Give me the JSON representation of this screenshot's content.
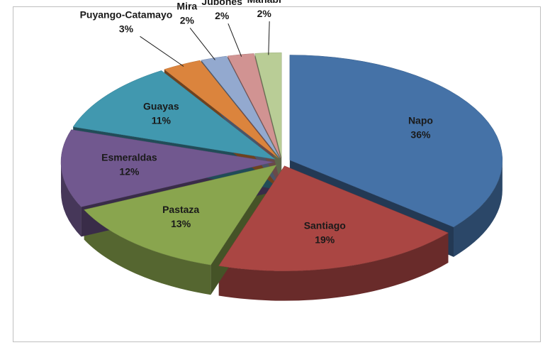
{
  "chart_data": {
    "type": "pie3d",
    "categories": [
      "Napo",
      "Santiago",
      "Pastaza",
      "Esmeraldas",
      "Guayas",
      "Puyango-Catamayo",
      "Mira",
      "Jubones",
      "Manabí"
    ],
    "values": [
      36,
      19,
      13,
      12,
      11,
      3,
      2,
      2,
      2
    ],
    "value_labels": [
      "36%",
      "19%",
      "13%",
      "12%",
      "11%",
      "3%",
      "2%",
      "2%",
      "2%"
    ],
    "colors": [
      "#4572a7",
      "#aa4643",
      "#89a54e",
      "#71588f",
      "#4198af",
      "#db843d",
      "#93a9cf",
      "#d19392",
      "#b9cd96"
    ]
  }
}
